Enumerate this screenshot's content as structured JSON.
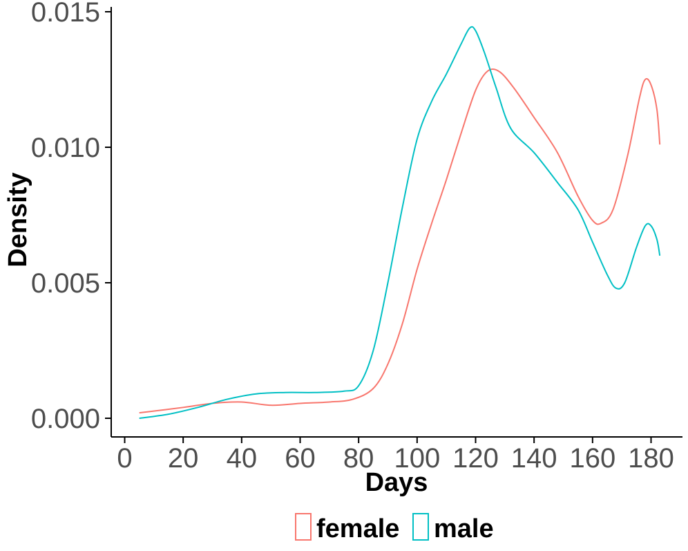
{
  "chart_data": {
    "type": "line",
    "xlabel": "Days",
    "ylabel": "Density",
    "xlim": [
      -5,
      192
    ],
    "ylim": [
      0,
      0.015
    ],
    "x_ticks": [
      0,
      20,
      40,
      60,
      80,
      100,
      120,
      140,
      160,
      180
    ],
    "x_tick_labels": [
      "0",
      "20",
      "40",
      "60",
      "80",
      "100",
      "120",
      "140",
      "160",
      "180"
    ],
    "y_ticks": [
      0,
      0.005,
      0.01,
      0.015
    ],
    "y_tick_labels": [
      "0.000",
      "0.005",
      "0.010",
      "0.015"
    ],
    "grid": false,
    "legend_position": "bottom",
    "series": [
      {
        "name": "female",
        "color": "#F8766D",
        "points": [
          [
            5,
            0.0002
          ],
          [
            20,
            0.0004
          ],
          [
            30,
            0.00055
          ],
          [
            40,
            0.0006
          ],
          [
            50,
            0.00048
          ],
          [
            60,
            0.00055
          ],
          [
            70,
            0.0006
          ],
          [
            78,
            0.0007
          ],
          [
            85,
            0.0011
          ],
          [
            90,
            0.002
          ],
          [
            95,
            0.0035
          ],
          [
            100,
            0.0055
          ],
          [
            105,
            0.0072
          ],
          [
            110,
            0.0088
          ],
          [
            115,
            0.0105
          ],
          [
            120,
            0.0121
          ],
          [
            124,
            0.0128
          ],
          [
            128,
            0.0128
          ],
          [
            133,
            0.0122
          ],
          [
            140,
            0.0111
          ],
          [
            148,
            0.0098
          ],
          [
            155,
            0.0082
          ],
          [
            160,
            0.0073
          ],
          [
            163,
            0.0072
          ],
          [
            167,
            0.0077
          ],
          [
            172,
            0.0097
          ],
          [
            176,
            0.0118
          ],
          [
            178,
            0.0125
          ],
          [
            180,
            0.0123
          ],
          [
            182,
            0.0114
          ],
          [
            183,
            0.0101
          ]
        ]
      },
      {
        "name": "male",
        "color": "#00BFC4",
        "points": [
          [
            5,
            0.0
          ],
          [
            15,
            0.00015
          ],
          [
            25,
            0.0004
          ],
          [
            35,
            0.0007
          ],
          [
            45,
            0.0009
          ],
          [
            55,
            0.00095
          ],
          [
            65,
            0.00095
          ],
          [
            75,
            0.001
          ],
          [
            80,
            0.0012
          ],
          [
            85,
            0.0025
          ],
          [
            90,
            0.005
          ],
          [
            95,
            0.0078
          ],
          [
            100,
            0.0103
          ],
          [
            105,
            0.0117
          ],
          [
            110,
            0.0127
          ],
          [
            115,
            0.0138
          ],
          [
            118,
            0.0144
          ],
          [
            120,
            0.0143
          ],
          [
            123,
            0.0135
          ],
          [
            127,
            0.0122
          ],
          [
            132,
            0.0107
          ],
          [
            140,
            0.0098
          ],
          [
            148,
            0.0087
          ],
          [
            155,
            0.0077
          ],
          [
            160,
            0.0065
          ],
          [
            165,
            0.0053
          ],
          [
            168,
            0.0048
          ],
          [
            171,
            0.005
          ],
          [
            175,
            0.0063
          ],
          [
            178,
            0.0071
          ],
          [
            180,
            0.0071
          ],
          [
            182,
            0.0066
          ],
          [
            183,
            0.006
          ]
        ]
      }
    ]
  },
  "legend": {
    "items": [
      {
        "label": "female",
        "color": "#F8766D"
      },
      {
        "label": "male",
        "color": "#00BFC4"
      }
    ]
  }
}
